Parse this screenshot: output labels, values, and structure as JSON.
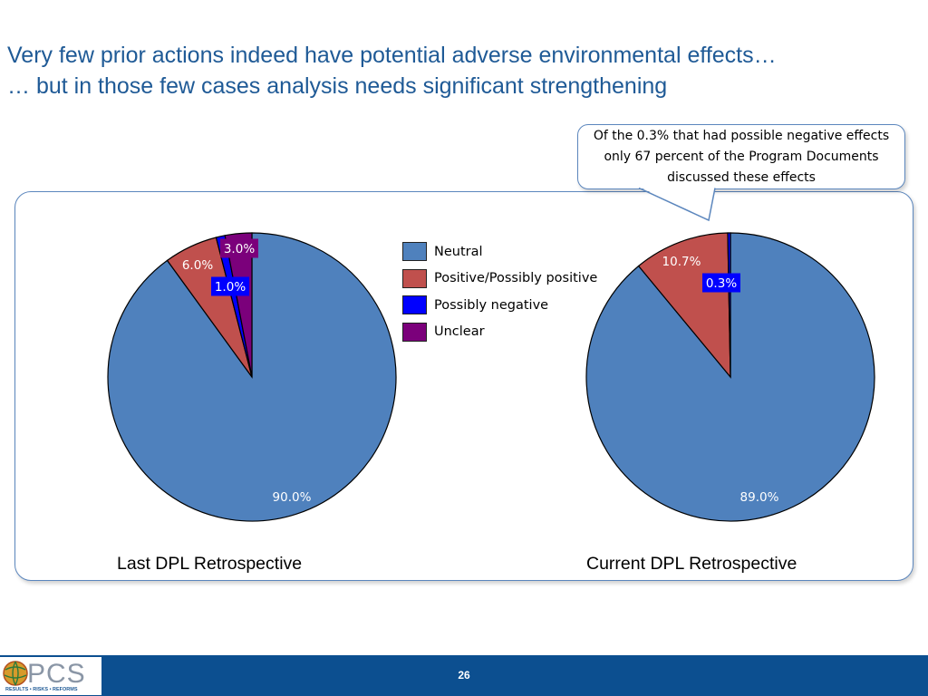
{
  "title": {
    "line1": "Very few prior actions indeed have potential adverse environmental effects…",
    "line2": "… but in those few cases analysis needs significant strengthening"
  },
  "callout": {
    "text": "Of the 0.3% that had possible negative effects only 67 percent of the Program Documents discussed these effects"
  },
  "legend": [
    {
      "label": "Neutral",
      "color": "#4f81bd"
    },
    {
      "label": "Positive/Possibly positive",
      "color": "#c0504d"
    },
    {
      "label": "Possibly negative",
      "color": "#0000ff"
    },
    {
      "label": "Unclear",
      "color": "#7b007b"
    }
  ],
  "chart_data": [
    {
      "type": "pie",
      "title": "Last DPL Retrospective",
      "categories": [
        "Neutral",
        "Positive/Possibly positive",
        "Possibly negative",
        "Unclear"
      ],
      "values": [
        90.0,
        6.0,
        1.0,
        3.0
      ],
      "data_labels": [
        "90.0%",
        "6.0%",
        "1.0%",
        "3.0%"
      ]
    },
    {
      "type": "pie",
      "title": "Current DPL Retrospective",
      "categories": [
        "Neutral",
        "Positive/Possibly positive",
        "Possibly negative"
      ],
      "values": [
        89.0,
        10.7,
        0.3
      ],
      "data_labels": [
        "89.0%",
        "10.7%",
        "0.3%"
      ]
    }
  ],
  "footer": {
    "page_number": "26",
    "logo_text": "PCS",
    "logo_subtext": "RESULTS • RISKS • REFORMS"
  }
}
